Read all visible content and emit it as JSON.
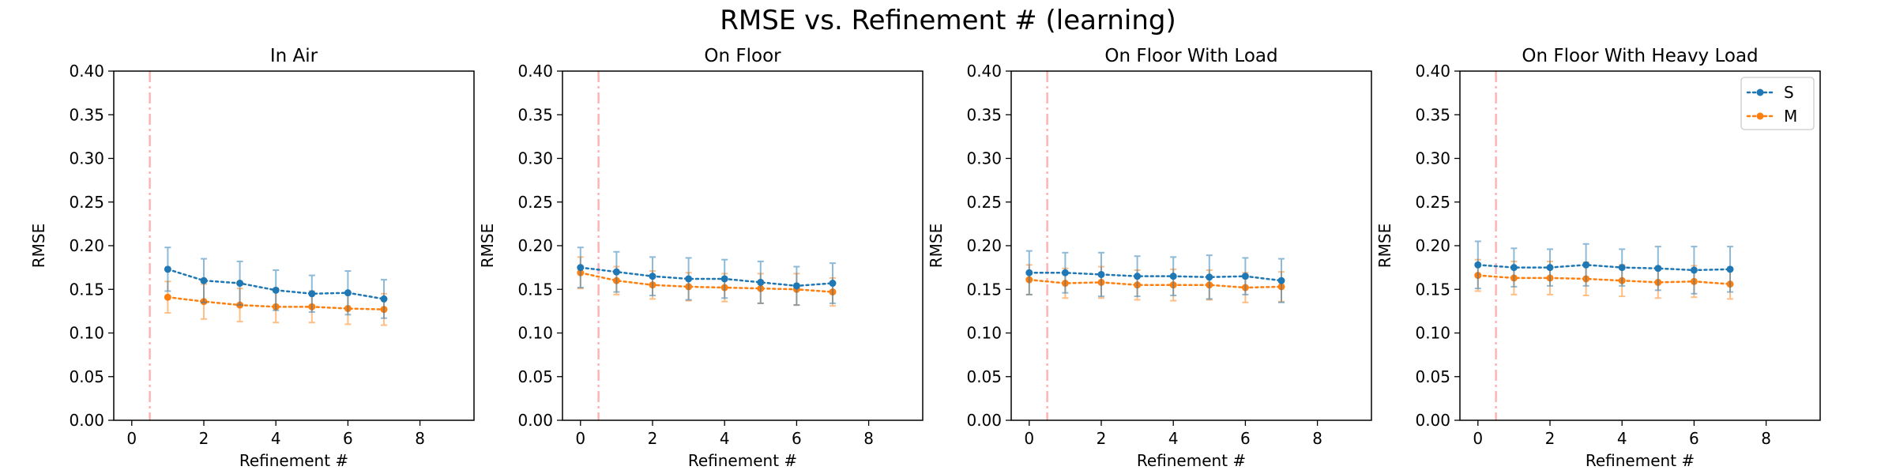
{
  "figure": {
    "suptitle": "RMSE vs. Refinement # (learning)"
  },
  "colors": {
    "S": "#1f77b4",
    "M": "#ff7f0e",
    "vline": "#ffb3b3"
  },
  "chart_data": [
    {
      "type": "line",
      "title": "In Air",
      "xlabel": "Refinement #",
      "ylabel": "RMSE",
      "xlim": [
        -0.5,
        9.5
      ],
      "ylim": [
        0.0,
        0.4
      ],
      "xticks": [
        0,
        2,
        4,
        6,
        8
      ],
      "yticks": [
        0.0,
        0.05,
        0.1,
        0.15,
        0.2,
        0.25,
        0.3,
        0.35,
        0.4
      ],
      "ytick_labels": [
        "0.00",
        "0.05",
        "0.10",
        "0.15",
        "0.20",
        "0.25",
        "0.30",
        "0.35",
        "0.40"
      ],
      "grid": false,
      "vline_x": 0.5,
      "legend": null,
      "series": [
        {
          "name": "S",
          "x": [
            1,
            2,
            3,
            4,
            5,
            6,
            7
          ],
          "values": [
            0.173,
            0.16,
            0.157,
            0.149,
            0.145,
            0.146,
            0.139
          ],
          "err": [
            0.025,
            0.025,
            0.025,
            0.023,
            0.021,
            0.025,
            0.022
          ]
        },
        {
          "name": "M",
          "x": [
            1,
            2,
            3,
            4,
            5,
            6,
            7
          ],
          "values": [
            0.141,
            0.136,
            0.132,
            0.13,
            0.13,
            0.128,
            0.127
          ],
          "err": [
            0.018,
            0.02,
            0.019,
            0.018,
            0.018,
            0.018,
            0.018
          ]
        }
      ]
    },
    {
      "type": "line",
      "title": "On Floor",
      "xlabel": "Refinement #",
      "ylabel": "RMSE",
      "xlim": [
        -0.5,
        9.5
      ],
      "ylim": [
        0.0,
        0.4
      ],
      "xticks": [
        0,
        2,
        4,
        6,
        8
      ],
      "yticks": [
        0.0,
        0.05,
        0.1,
        0.15,
        0.2,
        0.25,
        0.3,
        0.35,
        0.4
      ],
      "ytick_labels": [
        "0.00",
        "0.05",
        "0.10",
        "0.15",
        "0.20",
        "0.25",
        "0.30",
        "0.35",
        "0.40"
      ],
      "grid": false,
      "vline_x": 0.5,
      "legend": null,
      "series": [
        {
          "name": "S",
          "x": [
            0,
            1,
            2,
            3,
            4,
            5,
            6,
            7
          ],
          "values": [
            0.175,
            0.17,
            0.165,
            0.162,
            0.162,
            0.158,
            0.154,
            0.157
          ],
          "err": [
            0.023,
            0.023,
            0.022,
            0.024,
            0.022,
            0.024,
            0.022,
            0.023
          ]
        },
        {
          "name": "M",
          "x": [
            0,
            1,
            2,
            3,
            4,
            5,
            6,
            7
          ],
          "values": [
            0.169,
            0.16,
            0.155,
            0.153,
            0.152,
            0.151,
            0.15,
            0.147
          ],
          "err": [
            0.018,
            0.016,
            0.016,
            0.016,
            0.016,
            0.017,
            0.018,
            0.016
          ]
        }
      ]
    },
    {
      "type": "line",
      "title": "On Floor With Load",
      "xlabel": "Refinement #",
      "ylabel": "RMSE",
      "xlim": [
        -0.5,
        9.5
      ],
      "ylim": [
        0.0,
        0.4
      ],
      "xticks": [
        0,
        2,
        4,
        6,
        8
      ],
      "yticks": [
        0.0,
        0.05,
        0.1,
        0.15,
        0.2,
        0.25,
        0.3,
        0.35,
        0.4
      ],
      "ytick_labels": [
        "0.00",
        "0.05",
        "0.10",
        "0.15",
        "0.20",
        "0.25",
        "0.30",
        "0.35",
        "0.40"
      ],
      "grid": false,
      "vline_x": 0.5,
      "legend": null,
      "series": [
        {
          "name": "S",
          "x": [
            0,
            1,
            2,
            3,
            4,
            5,
            6,
            7
          ],
          "values": [
            0.169,
            0.169,
            0.167,
            0.165,
            0.165,
            0.164,
            0.165,
            0.16
          ],
          "err": [
            0.025,
            0.023,
            0.025,
            0.023,
            0.022,
            0.025,
            0.021,
            0.025
          ]
        },
        {
          "name": "M",
          "x": [
            0,
            1,
            2,
            3,
            4,
            5,
            6,
            7
          ],
          "values": [
            0.161,
            0.157,
            0.158,
            0.155,
            0.155,
            0.155,
            0.152,
            0.153
          ],
          "err": [
            0.017,
            0.017,
            0.018,
            0.017,
            0.018,
            0.017,
            0.017,
            0.017
          ]
        }
      ]
    },
    {
      "type": "line",
      "title": "On Floor With Heavy Load",
      "xlabel": "Refinement #",
      "ylabel": "RMSE",
      "xlim": [
        -0.5,
        9.5
      ],
      "ylim": [
        0.0,
        0.4
      ],
      "xticks": [
        0,
        2,
        4,
        6,
        8
      ],
      "yticks": [
        0.0,
        0.05,
        0.1,
        0.15,
        0.2,
        0.25,
        0.3,
        0.35,
        0.4
      ],
      "ytick_labels": [
        "0.00",
        "0.05",
        "0.10",
        "0.15",
        "0.20",
        "0.25",
        "0.30",
        "0.35",
        "0.40"
      ],
      "grid": false,
      "vline_x": 0.5,
      "legend": "top-right",
      "series": [
        {
          "name": "S",
          "x": [
            0,
            1,
            2,
            3,
            4,
            5,
            6,
            7
          ],
          "values": [
            0.178,
            0.175,
            0.175,
            0.178,
            0.175,
            0.174,
            0.172,
            0.173
          ],
          "err": [
            0.027,
            0.022,
            0.021,
            0.024,
            0.021,
            0.025,
            0.027,
            0.026
          ]
        },
        {
          "name": "M",
          "x": [
            0,
            1,
            2,
            3,
            4,
            5,
            6,
            7
          ],
          "values": [
            0.166,
            0.163,
            0.163,
            0.162,
            0.16,
            0.158,
            0.159,
            0.156
          ],
          "err": [
            0.018,
            0.019,
            0.019,
            0.019,
            0.018,
            0.018,
            0.018,
            0.017
          ]
        }
      ]
    }
  ]
}
